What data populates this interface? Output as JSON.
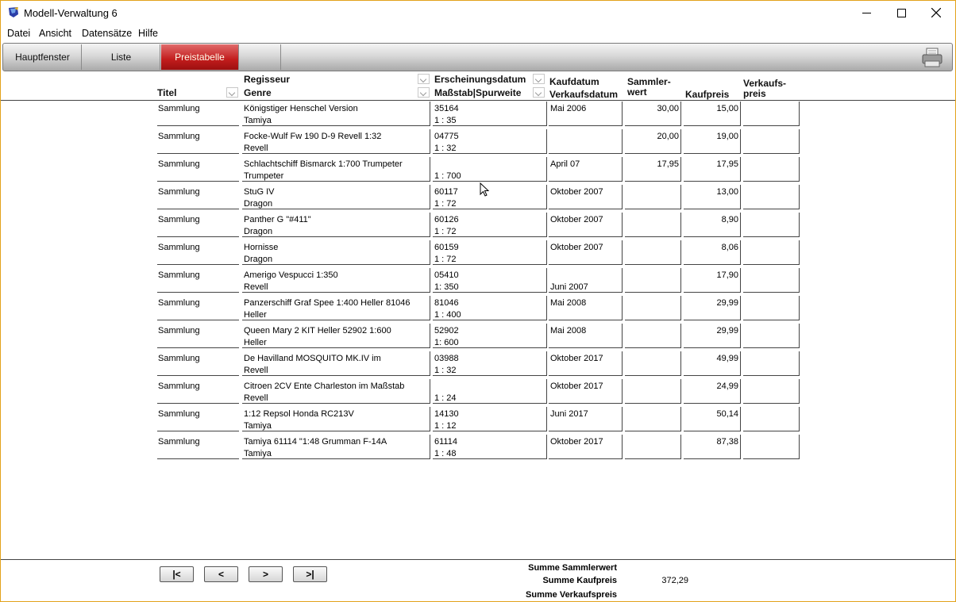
{
  "window": {
    "title": "Modell-Verwaltung 6"
  },
  "menu": {
    "items": [
      "Datei",
      "Ansicht",
      "Datensätze",
      "Hilfe"
    ]
  },
  "toolbar": {
    "tabs": [
      "Hauptfenster",
      "Liste",
      "Preistabelle"
    ],
    "active_tab": "Preistabelle",
    "active_color": "#c21c1c"
  },
  "header": {
    "titel": "Titel",
    "regisseur": "Regisseur",
    "genre": "Genre",
    "erscheinungsdatum": "Erscheinungsdatum",
    "massstab": "Maßstab|Spurweite",
    "kaufdatum": "Kaufdatum",
    "verkaufsdatum": "Verkaufsdatum",
    "sammlerwert_1": "Sammler-",
    "sammlerwert_2": "wert",
    "kaufpreis": "Kaufpreis",
    "verkaufspreis_1": "Verkaufs-",
    "verkaufspreis_2": "preis"
  },
  "rows": [
    {
      "titel": "Sammlung",
      "name": "Königstiger Henschel Version",
      "hersteller": "Tamiya",
      "nummer": "35164",
      "massstab": "1 : 35",
      "kaufdatum": "Mai 2006",
      "verkaufsdatum": "",
      "sammlerwert": "30,00",
      "kaufpreis": "15,00",
      "verkaufspreis": ""
    },
    {
      "titel": "Sammlung",
      "name": "Focke-Wulf Fw 190 D-9 Revell 1:32",
      "hersteller": "Revell",
      "nummer": "04775",
      "massstab": "1 : 32",
      "kaufdatum": "",
      "verkaufsdatum": "",
      "sammlerwert": "20,00",
      "kaufpreis": "19,00",
      "verkaufspreis": ""
    },
    {
      "titel": "Sammlung",
      "name": "Schlachtschiff Bismarck 1:700 Trumpeter",
      "hersteller": "Trumpeter",
      "nummer": "",
      "massstab": "1 : 700",
      "kaufdatum": "April 07",
      "verkaufsdatum": "",
      "sammlerwert": "17,95",
      "kaufpreis": "17,95",
      "verkaufspreis": ""
    },
    {
      "titel": "Sammlung",
      "name": "StuG IV",
      "hersteller": "Dragon",
      "nummer": "60117",
      "massstab": "1 : 72",
      "kaufdatum": "Oktober 2007",
      "verkaufsdatum": "",
      "sammlerwert": "",
      "kaufpreis": "13,00",
      "verkaufspreis": ""
    },
    {
      "titel": "Sammlung",
      "name": "Panther G \"#411\"",
      "hersteller": "Dragon",
      "nummer": "60126",
      "massstab": "1 : 72",
      "kaufdatum": "Oktober 2007",
      "verkaufsdatum": "",
      "sammlerwert": "",
      "kaufpreis": "8,90",
      "verkaufspreis": ""
    },
    {
      "titel": "Sammlung",
      "name": "Hornisse",
      "hersteller": "Dragon",
      "nummer": "60159",
      "massstab": "1 : 72",
      "kaufdatum": "Oktober 2007",
      "verkaufsdatum": "",
      "sammlerwert": "",
      "kaufpreis": "8,06",
      "verkaufspreis": ""
    },
    {
      "titel": "Sammlung",
      "name": "Amerigo Vespucci 1:350",
      "hersteller": "Revell",
      "nummer": "05410",
      "massstab": "1:  350",
      "kaufdatum": "",
      "verkaufsdatum": "Juni 2007",
      "sammlerwert": "",
      "kaufpreis": "17,90",
      "verkaufspreis": ""
    },
    {
      "titel": "Sammlung",
      "name": "Panzerschiff Graf Spee 1:400 Heller 81046",
      "hersteller": "Heller",
      "nummer": "81046",
      "massstab": "1 : 400",
      "kaufdatum": "Mai 2008",
      "verkaufsdatum": "",
      "sammlerwert": "",
      "kaufpreis": "29,99",
      "verkaufspreis": ""
    },
    {
      "titel": "Sammlung",
      "name": "Queen Mary 2 KIT Heller 52902 1:600",
      "hersteller": "Heller",
      "nummer": "52902",
      "massstab": "1:  600",
      "kaufdatum": "Mai 2008",
      "verkaufsdatum": "",
      "sammlerwert": "",
      "kaufpreis": "29,99",
      "verkaufspreis": ""
    },
    {
      "titel": "Sammlung",
      "name": "De Havilland MOSQUITO MK.IV im",
      "hersteller": "Revell",
      "nummer": "03988",
      "massstab": "1 : 32",
      "kaufdatum": "Oktober 2017",
      "verkaufsdatum": "",
      "sammlerwert": "",
      "kaufpreis": "49,99",
      "verkaufspreis": ""
    },
    {
      "titel": "Sammlung",
      "name": "Citroen 2CV Ente Charleston im Maßstab",
      "hersteller": "Revell",
      "nummer": "",
      "massstab": "1 : 24",
      "kaufdatum": "Oktober 2017",
      "verkaufsdatum": "",
      "sammlerwert": "",
      "kaufpreis": "24,99",
      "verkaufspreis": ""
    },
    {
      "titel": "Sammlung",
      "name": "1:12 Repsol Honda RC213V",
      "hersteller": "Tamiya",
      "nummer": "14130",
      "massstab": "1 : 12",
      "kaufdatum": "Juni 2017",
      "verkaufsdatum": "",
      "sammlerwert": "",
      "kaufpreis": "50,14",
      "verkaufspreis": ""
    },
    {
      "titel": "Sammlung",
      "name": "Tamiya 61114 \"1:48 Grumman F-14A",
      "hersteller": "Tamiya",
      "nummer": "61114",
      "massstab": "1 : 48",
      "kaufdatum": "Oktober 2017",
      "verkaufsdatum": "",
      "sammlerwert": "",
      "kaufpreis": "87,38",
      "verkaufspreis": ""
    }
  ],
  "nav": {
    "first": "|<",
    "prev": "<",
    "next": ">",
    "last": ">|"
  },
  "summary": {
    "sammlerwert_label": "Summe Sammlerwert",
    "sammlerwert_value": "",
    "kaufpreis_label": "Summe Kaufpreis",
    "kaufpreis_value": "372,29",
    "verkaufspreis_label": "Summe Verkaufspreis",
    "verkaufspreis_value": ""
  }
}
